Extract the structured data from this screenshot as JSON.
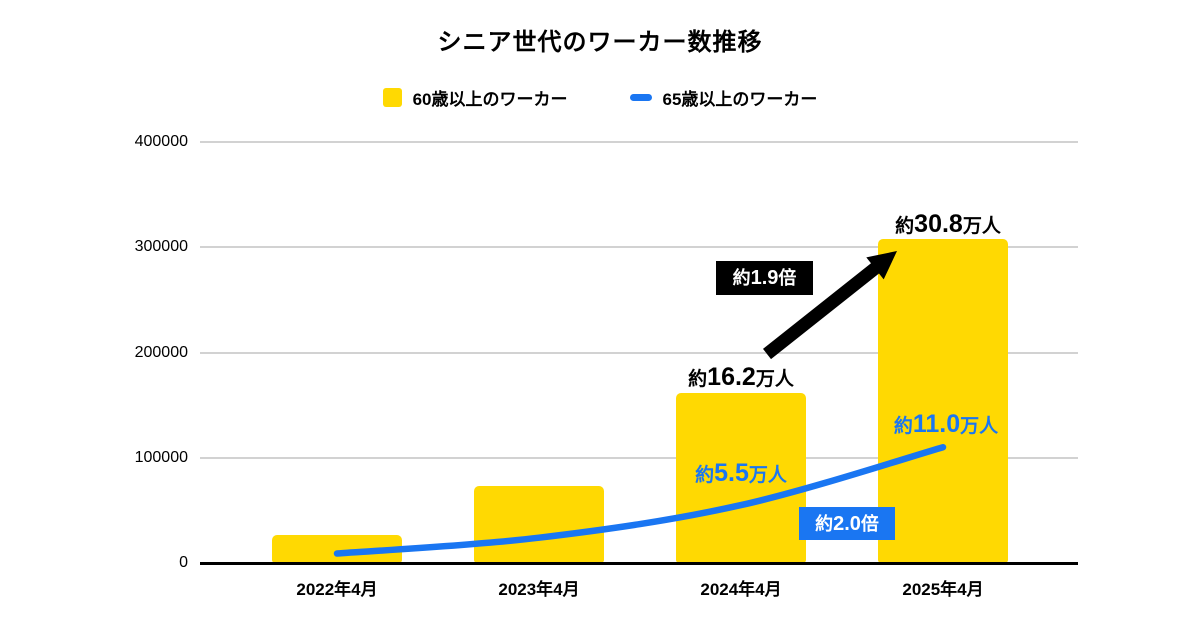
{
  "chart_data": {
    "type": "combo",
    "title": "シニア世代のワーカー数推移",
    "categories": [
      "2022年4月",
      "2023年4月",
      "2024年4月",
      "2025年4月"
    ],
    "series": [
      {
        "name": "60歳以上のワーカー",
        "type": "bar",
        "color": "#FFD902",
        "values": [
          27000,
          73000,
          162000,
          308000
        ]
      },
      {
        "name": "65歳以上のワーカー",
        "type": "line",
        "color": "#1A76F2",
        "values": [
          9000,
          24000,
          55000,
          110000
        ],
        "smooth": true
      }
    ],
    "xlabel": "",
    "ylabel": "",
    "ylim": [
      0,
      400000
    ],
    "yticks": [
      {
        "label": "0",
        "value": 0
      },
      {
        "label": "100000",
        "value": 100000
      },
      {
        "label": "200000",
        "value": 200000
      },
      {
        "label": "300000",
        "value": 300000
      },
      {
        "label": "400000",
        "value": 400000
      }
    ],
    "grid": true,
    "legend_position": "top",
    "annotations": {
      "bar2024": {
        "text": "約16.2万人",
        "prefix": "約",
        "num": "16.2",
        "suffix": "万人",
        "color": "#000000"
      },
      "bar2025": {
        "text": "約30.8万人",
        "prefix": "約",
        "num": "30.8",
        "suffix": "万人",
        "color": "#000000"
      },
      "line2024": {
        "text": "約5.5万人",
        "prefix": "約",
        "num": "5.5",
        "suffix": "万人",
        "color": "#1A76F2"
      },
      "line2025": {
        "text": "約11.0万人",
        "prefix": "約",
        "num": "11.0",
        "suffix": "万人",
        "color": "#1A76F2"
      },
      "barRatio": {
        "text": "約1.9倍",
        "prefix": "約",
        "num": "1.9",
        "suffix": "倍",
        "bg": "#000000",
        "fg": "#FFFFFF"
      },
      "lineRatio": {
        "text": "約2.0倍",
        "prefix": "約",
        "num": "2.0",
        "suffix": "倍",
        "bg": "#1A76F2",
        "fg": "#FFFFFF"
      }
    },
    "arrow": {
      "meaning": "growth from 2024 bar to 2025 bar",
      "color": "#000000"
    },
    "colors": {
      "bg": "#FFFFFF",
      "text": "#000000",
      "bar": "#FFD902",
      "line": "#1A76F2",
      "grid": "#D2D2D2",
      "axis": "#000000",
      "arrow": "#000000",
      "badge1": "#000000",
      "badge2": "#1A76F2",
      "badgeText": "#FFFFFF"
    }
  }
}
